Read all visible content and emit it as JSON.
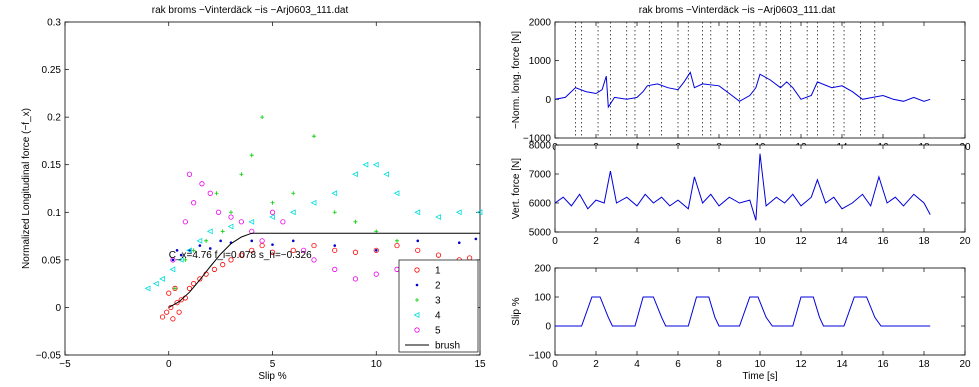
{
  "left_title": "rak broms −Vinterdäck −is −Arj0603_111.dat",
  "right_title": "rak broms −Vinterdäck −is −Arj0603_111.dat",
  "annotation": "C_x=4.76 f_i=0.078 s_h=−0.326",
  "colors": {
    "s1": "#ff0000",
    "s2": "#0000cc",
    "s3": "#00cc00",
    "s4": "#00dddd",
    "s5": "#ee00ee",
    "brush": "#000000",
    "trace": "#0000dd"
  },
  "chart_data": [
    {
      "type": "scatter",
      "title": "rak broms −Vinterdäck −is −Arj0603_111.dat",
      "xlabel": "Slip %",
      "ylabel": "Normalized Longitudinal force (−f_x)",
      "xlim": [
        -5,
        15
      ],
      "ylim": [
        -0.05,
        0.3
      ],
      "xticks": [
        -5,
        0,
        5,
        10,
        15
      ],
      "yticks": [
        -0.05,
        0,
        0.05,
        0.1,
        0.15,
        0.2,
        0.25,
        0.3
      ],
      "legend_position": "bottom-right",
      "series": [
        {
          "name": "1",
          "marker": "circle",
          "points": [
            [
              -0.3,
              -0.01
            ],
            [
              -0.1,
              -0.005
            ],
            [
              0.1,
              0
            ],
            [
              0.2,
              -0.012
            ],
            [
              0.4,
              0.005
            ],
            [
              0.6,
              0.008
            ],
            [
              0.8,
              0.01
            ],
            [
              1.0,
              0.02
            ],
            [
              0.5,
              -0.005
            ],
            [
              0.0,
              0.015
            ],
            [
              0.3,
              0.02
            ],
            [
              1.2,
              0.025
            ],
            [
              1.5,
              0.03
            ],
            [
              1.8,
              0.035
            ],
            [
              2.2,
              0.04
            ],
            [
              2.6,
              0.045
            ],
            [
              3.0,
              0.05
            ],
            [
              3.5,
              0.055
            ],
            [
              4.0,
              0.06
            ],
            [
              4.5,
              0.065
            ],
            [
              5.0,
              0.058
            ],
            [
              6.0,
              0.06
            ],
            [
              7.0,
              0.065
            ],
            [
              8.0,
              0.06
            ],
            [
              9.0,
              0.058
            ],
            [
              10.0,
              0.06
            ],
            [
              11.0,
              0.065
            ],
            [
              12.0,
              0.06
            ],
            [
              13.0,
              0.055
            ],
            [
              14.0,
              0.05
            ],
            [
              14.5,
              0.052
            ]
          ]
        },
        {
          "name": "2",
          "marker": "point",
          "points": [
            [
              0.2,
              0.05
            ],
            [
              0.4,
              0.06
            ],
            [
              0.6,
              0.055
            ],
            [
              1.0,
              0.06
            ],
            [
              1.5,
              0.065
            ],
            [
              2.0,
              0.062
            ],
            [
              2.5,
              0.07
            ],
            [
              3.0,
              0.068
            ],
            [
              4.0,
              0.07
            ],
            [
              5.0,
              0.066
            ],
            [
              6.0,
              0.07
            ],
            [
              8.0,
              0.065
            ],
            [
              10.0,
              0.06
            ],
            [
              12.0,
              0.07
            ],
            [
              14.0,
              0.068
            ],
            [
              14.8,
              0.072
            ]
          ]
        },
        {
          "name": "3",
          "marker": "plus",
          "points": [
            [
              0.3,
              0.02
            ],
            [
              0.8,
              0.05
            ],
            [
              1.2,
              0.06
            ],
            [
              1.8,
              0.07
            ],
            [
              2.3,
              0.12
            ],
            [
              2.6,
              0.08
            ],
            [
              3.0,
              0.1
            ],
            [
              3.5,
              0.14
            ],
            [
              4.0,
              0.16
            ],
            [
              4.5,
              0.2
            ],
            [
              5.0,
              0.11
            ],
            [
              6.0,
              0.12
            ],
            [
              7.0,
              0.18
            ],
            [
              8.0,
              0.1
            ],
            [
              9.0,
              0.09
            ],
            [
              10.0,
              0.08
            ],
            [
              11.0,
              0.07
            ]
          ]
        },
        {
          "name": "4",
          "marker": "triangle-left",
          "points": [
            [
              -1.0,
              0.02
            ],
            [
              -0.6,
              0.025
            ],
            [
              -0.3,
              0.03
            ],
            [
              0.2,
              0.04
            ],
            [
              0.6,
              0.05
            ],
            [
              1.0,
              0.06
            ],
            [
              1.5,
              0.07
            ],
            [
              2.0,
              0.08
            ],
            [
              3.0,
              0.085
            ],
            [
              4.0,
              0.09
            ],
            [
              5.0,
              0.095
            ],
            [
              6.0,
              0.1
            ],
            [
              7.0,
              0.11
            ],
            [
              8.0,
              0.12
            ],
            [
              9.0,
              0.14
            ],
            [
              9.5,
              0.15
            ],
            [
              10.0,
              0.15
            ],
            [
              10.5,
              0.14
            ],
            [
              11.0,
              0.12
            ],
            [
              12.0,
              0.1
            ],
            [
              13.0,
              0.095
            ],
            [
              14.0,
              0.1
            ],
            [
              15.0,
              0.1
            ]
          ]
        },
        {
          "name": "5",
          "marker": "circle",
          "points": [
            [
              0.2,
              0.05
            ],
            [
              0.8,
              0.09
            ],
            [
              1.2,
              0.11
            ],
            [
              1.6,
              0.13
            ],
            [
              1.0,
              0.14
            ],
            [
              2.0,
              0.12
            ],
            [
              2.4,
              0.1
            ],
            [
              3.0,
              0.095
            ],
            [
              3.5,
              0.09
            ],
            [
              4.0,
              0.08
            ],
            [
              4.5,
              0.07
            ],
            [
              5.0,
              0.1
            ],
            [
              5.5,
              0.09
            ],
            [
              6.5,
              0.06
            ],
            [
              7.0,
              0.05
            ],
            [
              8.0,
              0.04
            ],
            [
              9.0,
              0.03
            ],
            [
              10.0,
              0.035
            ],
            [
              11.0,
              0.04
            ],
            [
              12.0,
              0.045
            ]
          ]
        },
        {
          "name": "brush",
          "marker": "line",
          "points": [
            [
              0,
              0
            ],
            [
              0.5,
              0.006
            ],
            [
              1,
              0.016
            ],
            [
              1.5,
              0.029
            ],
            [
              2,
              0.043
            ],
            [
              2.5,
              0.056
            ],
            [
              3,
              0.067
            ],
            [
              3.5,
              0.074
            ],
            [
              4,
              0.078
            ],
            [
              15,
              0.078
            ]
          ]
        }
      ]
    },
    {
      "type": "line",
      "xlabel": "",
      "ylabel": "−Norm. long. force [N]",
      "xlim": [
        0,
        20
      ],
      "ylim": [
        -1000,
        2000
      ],
      "xticks": [
        0,
        2,
        4,
        6,
        8,
        10,
        12,
        14,
        16,
        18,
        20
      ],
      "yticks": [
        -1000,
        0,
        1000,
        2000
      ],
      "vertical_markers": [
        1.0,
        1.3,
        2.1,
        2.7,
        3.5,
        3.9,
        4.6,
        5.2,
        6.0,
        6.5,
        7.2,
        7.6,
        8.4,
        9.0,
        9.7,
        10.3,
        11.0,
        11.5,
        12.3,
        12.8,
        13.6,
        14.1,
        14.9,
        15.6
      ],
      "x": [
        0.0,
        0.5,
        1.0,
        1.5,
        2.0,
        2.3,
        2.5,
        2.6,
        2.9,
        3.5,
        4.0,
        4.3,
        4.5,
        5.0,
        5.5,
        6.0,
        6.3,
        6.6,
        6.8,
        7.2,
        8.0,
        8.5,
        9.0,
        9.5,
        9.8,
        10.0,
        10.5,
        11.0,
        11.3,
        11.6,
        12.0,
        12.5,
        12.8,
        13.5,
        14.0,
        14.5,
        15.0,
        15.5,
        16.0,
        16.5,
        17.0,
        17.5,
        18.0,
        18.3
      ],
      "values": [
        0,
        50,
        300,
        200,
        150,
        250,
        600,
        -200,
        50,
        0,
        50,
        200,
        350,
        400,
        300,
        250,
        450,
        700,
        300,
        400,
        350,
        150,
        -50,
        100,
        300,
        650,
        500,
        300,
        450,
        300,
        0,
        100,
        450,
        300,
        350,
        200,
        0,
        50,
        100,
        0,
        -50,
        50,
        -50,
        0
      ]
    },
    {
      "type": "line",
      "xlabel": "",
      "ylabel": "Vert. force [N]",
      "xlim": [
        0,
        20
      ],
      "ylim": [
        5000,
        8000
      ],
      "xticks": [
        0,
        2,
        4,
        6,
        8,
        10,
        12,
        14,
        16,
        18,
        20
      ],
      "yticks": [
        5000,
        6000,
        7000,
        8000
      ],
      "x": [
        0.0,
        0.4,
        0.8,
        1.2,
        1.6,
        2.0,
        2.4,
        2.7,
        3.0,
        3.5,
        4.0,
        4.4,
        4.8,
        5.2,
        5.6,
        6.0,
        6.5,
        6.8,
        7.2,
        7.6,
        8.0,
        8.5,
        9.0,
        9.5,
        9.8,
        10.0,
        10.3,
        10.8,
        11.2,
        11.6,
        12.0,
        12.5,
        12.8,
        13.2,
        13.6,
        14.0,
        14.5,
        15.0,
        15.4,
        15.8,
        16.2,
        16.6,
        17.0,
        17.5,
        18.0,
        18.3
      ],
      "values": [
        6000,
        6200,
        5900,
        6300,
        5800,
        6100,
        6000,
        7100,
        6000,
        6200,
        5900,
        6300,
        6000,
        6200,
        5900,
        6100,
        5800,
        6900,
        6000,
        6300,
        5900,
        6200,
        6000,
        6100,
        5400,
        7700,
        5900,
        6200,
        6000,
        6300,
        5900,
        6200,
        6800,
        6000,
        6200,
        5800,
        6000,
        6300,
        5900,
        6900,
        6000,
        6200,
        5900,
        6300,
        6000,
        5600
      ]
    },
    {
      "type": "line",
      "xlabel": "Time [s]",
      "ylabel": "Slip %",
      "xlim": [
        0,
        20
      ],
      "ylim": [
        -100,
        200
      ],
      "xticks": [
        0,
        2,
        4,
        6,
        8,
        10,
        12,
        14,
        16,
        18,
        20
      ],
      "yticks": [
        -100,
        0,
        100,
        200
      ],
      "x": [
        0.0,
        1.3,
        1.8,
        2.2,
        2.6,
        2.8,
        3.9,
        4.3,
        4.8,
        5.2,
        5.4,
        6.5,
        6.9,
        7.5,
        7.8,
        8.0,
        9.0,
        9.5,
        9.9,
        10.3,
        10.6,
        11.6,
        12.0,
        12.6,
        12.9,
        13.1,
        14.1,
        14.6,
        15.2,
        15.6,
        15.9,
        18.3
      ],
      "values": [
        0,
        0,
        100,
        100,
        30,
        0,
        0,
        100,
        100,
        30,
        0,
        0,
        100,
        100,
        30,
        0,
        0,
        100,
        100,
        30,
        0,
        0,
        100,
        100,
        30,
        0,
        0,
        100,
        100,
        30,
        0,
        0
      ]
    }
  ]
}
